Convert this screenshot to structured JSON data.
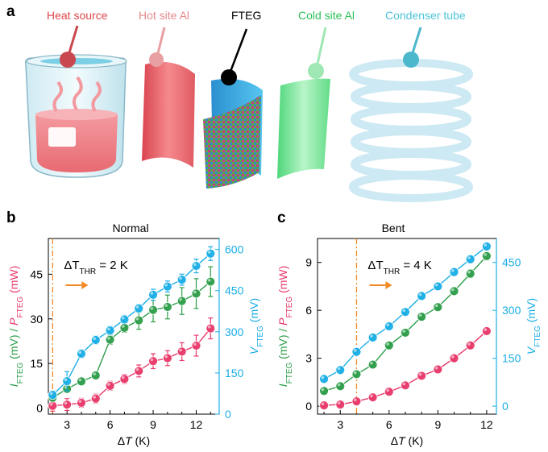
{
  "panel_labels": [
    "a",
    "b",
    "c"
  ],
  "components": [
    {
      "label": "Heat source",
      "color": "#e0474c"
    },
    {
      "label": "Hot site Al",
      "color": "#e8888a"
    },
    {
      "label": "FTEG",
      "color": "#000000"
    },
    {
      "label": "Cold site Al",
      "color": "#2fbf5a"
    },
    {
      "label": "Condenser tube",
      "color": "#4cc4d8"
    }
  ],
  "colors": {
    "current": "#e8396a",
    "power": "#2e9e4a",
    "voltage": "#1aaee6",
    "threshold": "#f08a24"
  },
  "left_axis_label_parts": [
    "I",
    "FTEG",
    " (mV) / ",
    "P",
    "FTEG",
    " (mW)"
  ],
  "right_axis_label_parts": [
    "V",
    "FTEG",
    " (mV)"
  ],
  "x_axis_label_parts": [
    "Δ",
    "T",
    " (K)"
  ],
  "chart_data": [
    {
      "panel": "b",
      "type": "line",
      "title": "Normal",
      "annotation": {
        "prefix": "ΔT",
        "sub": "THR",
        "suffix": " = 2 K",
        "threshold_x": 2
      },
      "xlabel": "ΔT (K)",
      "ylabel_left": "IFTEG (mV) / PFTEG (mW)",
      "ylabel_right": "VFTEG (mV)",
      "x": [
        2,
        3,
        4,
        5,
        6,
        7,
        8,
        9,
        10,
        11,
        12,
        13
      ],
      "xlim": [
        1.7,
        13.6
      ],
      "xticks": [
        3,
        6,
        9,
        12
      ],
      "ylim_left": [
        -2,
        57
      ],
      "yticks_left": [
        0,
        15,
        30,
        45
      ],
      "ylim_right": [
        0,
        640
      ],
      "yticks_right": [
        0,
        150,
        300,
        450,
        600
      ],
      "series": [
        {
          "key": "current",
          "axis": "left",
          "values": [
            0.8,
            1.2,
            1.8,
            3.2,
            7.5,
            9.8,
            12.5,
            15.8,
            16.8,
            19.0,
            21.0,
            26.8
          ],
          "errors": [
            1.8,
            2.0,
            1.5,
            1.5,
            1.5,
            1.5,
            2.0,
            2.5,
            2.5,
            3.0,
            3.5,
            3.5
          ]
        },
        {
          "key": "power",
          "axis": "left",
          "values": [
            3.5,
            6.5,
            9.0,
            11.0,
            23.0,
            27.0,
            29.5,
            33.0,
            34.0,
            36.0,
            38.5,
            42.5
          ],
          "errors": [
            1.0,
            1.0,
            1.0,
            1.0,
            1.5,
            1.5,
            3.0,
            4.0,
            4.0,
            4.5,
            5.0,
            5.0
          ]
        },
        {
          "key": "voltage",
          "axis": "right",
          "values": [
            70,
            120,
            220,
            270,
            305,
            345,
            385,
            435,
            465,
            490,
            540,
            585
          ],
          "errors": [
            15,
            35,
            15,
            15,
            15,
            15,
            15,
            20,
            20,
            20,
            25,
            25
          ]
        }
      ]
    },
    {
      "panel": "c",
      "type": "line",
      "title": "Bent",
      "annotation": {
        "prefix": "ΔT",
        "sub": "THR",
        "suffix": " = 4 K",
        "threshold_x": 4
      },
      "xlabel": "ΔT (K)",
      "ylabel_left": "IFTEG (mV) / PFTEG (mW)",
      "ylabel_right": "VFTEG (mV)",
      "x": [
        2,
        3,
        4,
        5,
        6,
        7,
        8,
        9,
        10,
        11,
        12
      ],
      "xlim": [
        1.6,
        12.6
      ],
      "xticks": [
        3,
        6,
        9,
        12
      ],
      "ylim_left": [
        -0.5,
        10.5
      ],
      "yticks_left": [
        0,
        3,
        6,
        9
      ],
      "ylim_right": [
        -25,
        525
      ],
      "yticks_right": [
        0,
        150,
        300,
        450
      ],
      "series": [
        {
          "key": "current",
          "axis": "left",
          "values": [
            0.05,
            0.1,
            0.3,
            0.55,
            0.9,
            1.3,
            1.9,
            2.3,
            3.0,
            3.8,
            4.7
          ],
          "errors": [
            0.1,
            0.1,
            0.1,
            0.1,
            0.1,
            0.1,
            0.1,
            0.12,
            0.15,
            0.15,
            0.15
          ]
        },
        {
          "key": "power",
          "axis": "left",
          "values": [
            0.95,
            1.25,
            2.0,
            2.6,
            3.8,
            4.6,
            5.6,
            6.2,
            7.2,
            8.3,
            9.4
          ],
          "errors": [
            0.15,
            0.15,
            0.15,
            0.15,
            0.15,
            0.15,
            0.15,
            0.15,
            0.2,
            0.25,
            0.25
          ]
        },
        {
          "key": "voltage",
          "axis": "right",
          "values": [
            85,
            113,
            170,
            215,
            250,
            295,
            345,
            375,
            420,
            460,
            500
          ],
          "errors": [
            12,
            10,
            10,
            8,
            8,
            8,
            8,
            10,
            10,
            10,
            10
          ]
        }
      ]
    }
  ]
}
